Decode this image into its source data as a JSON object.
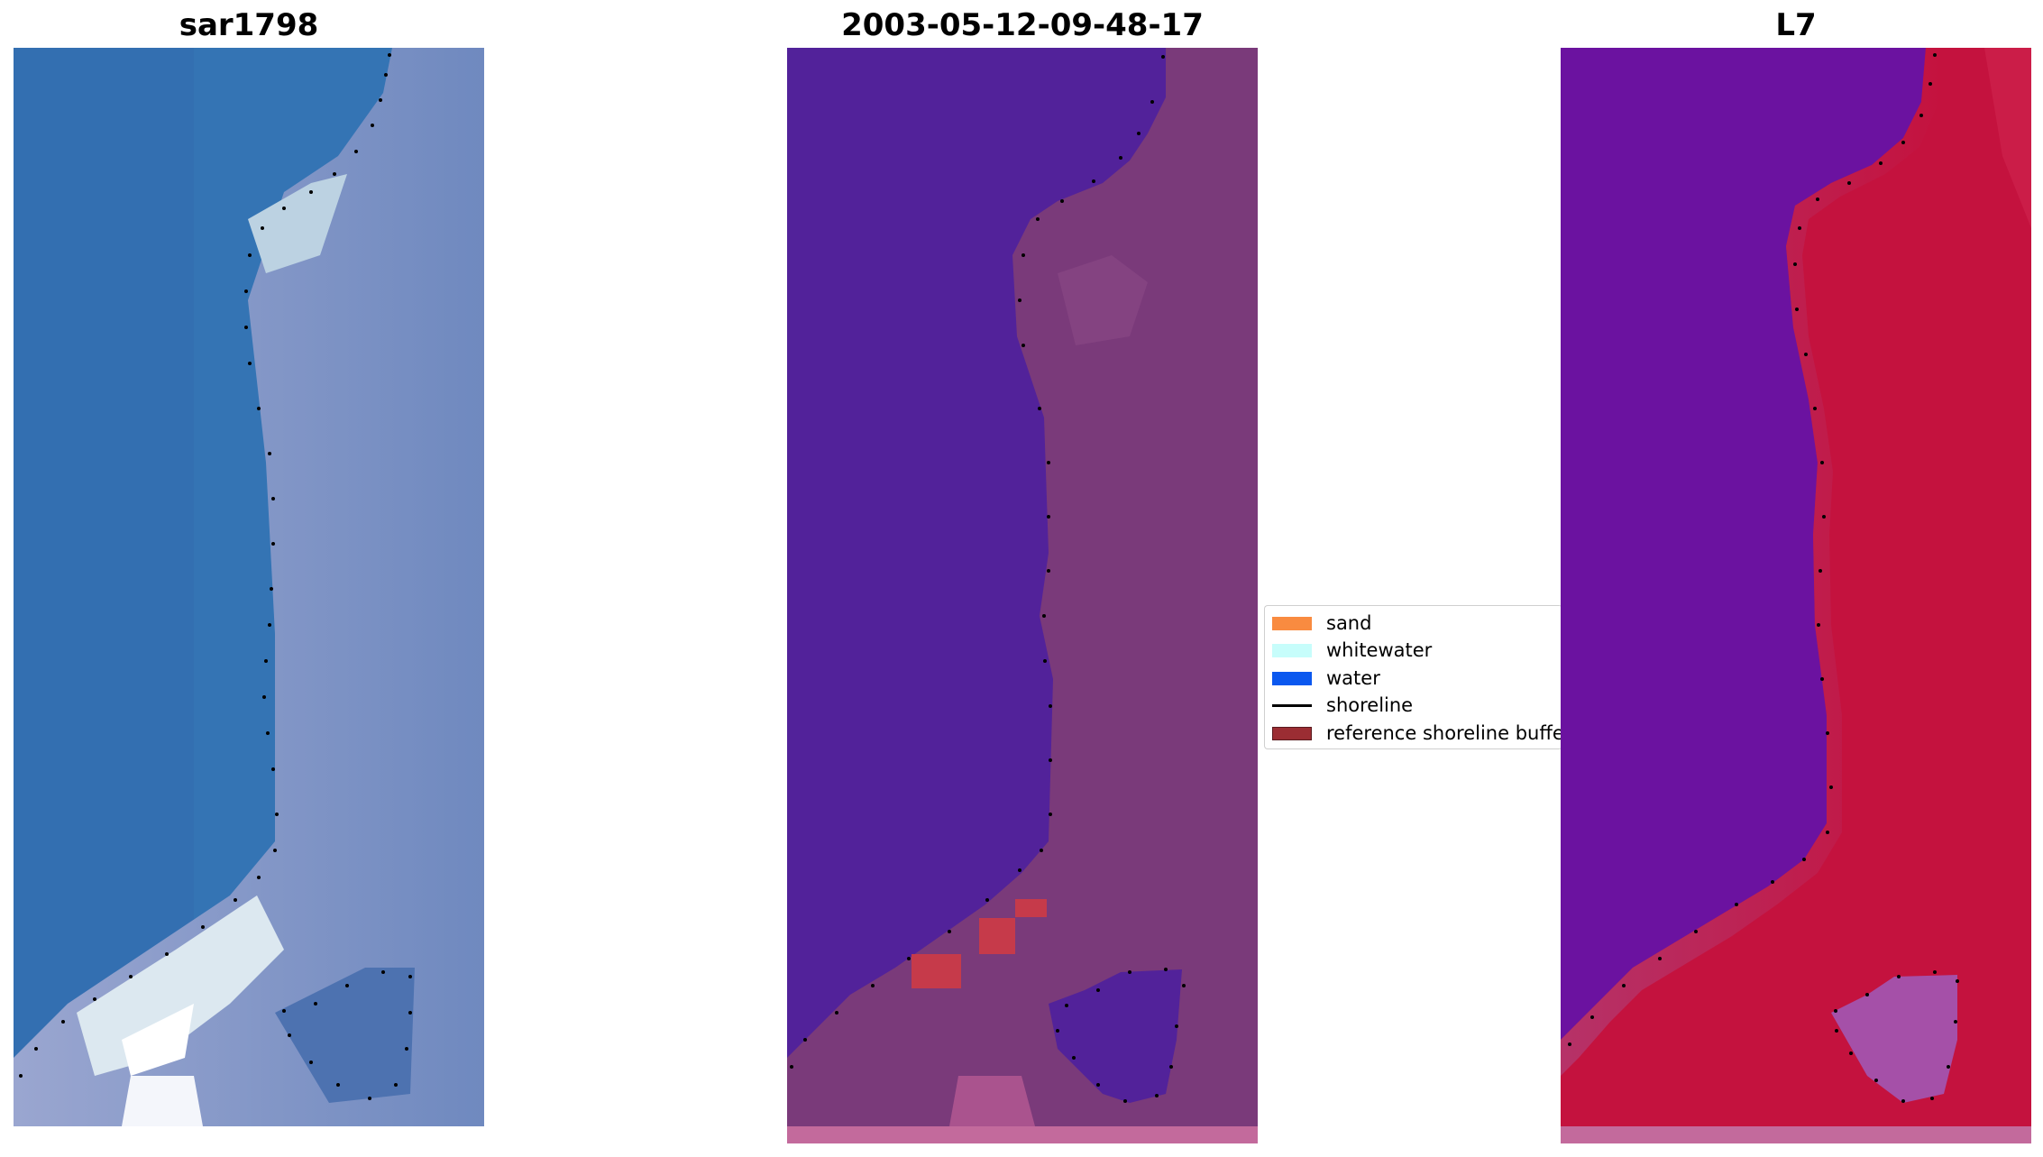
{
  "panels": [
    {
      "title": "sar1798",
      "image": "sar-rgb"
    },
    {
      "title": "2003-05-12-09-48-17",
      "image": "classified"
    },
    {
      "title": "L7",
      "image": "mndwi"
    }
  ],
  "legend": {
    "items": [
      {
        "label": "sand",
        "color": "#f98b40",
        "type": "patch"
      },
      {
        "label": "whitewater",
        "color": "#c7fdfb",
        "type": "patch"
      },
      {
        "label": "water",
        "color": "#0b58ef",
        "type": "patch"
      },
      {
        "label": "shoreline",
        "color": "#000000",
        "type": "line"
      },
      {
        "label": "reference shoreline buffer",
        "color": "#9b2d33",
        "type": "patch"
      }
    ]
  },
  "colors": {
    "sar_water": "#3474b4",
    "sar_land": "#8f9ec8",
    "class_water": "#52229a",
    "class_land": "#7a3a7a",
    "class_red": "#c63a4a",
    "l7_water": "#6b12a0",
    "l7_land": "#c4123e",
    "shoreline_dots": "#000000"
  }
}
